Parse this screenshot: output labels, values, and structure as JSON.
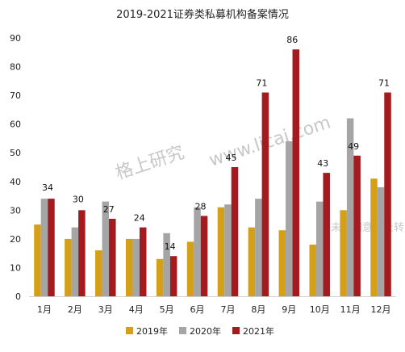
{
  "chart_data": {
    "type": "bar",
    "title": "2019-2021证券类私募机构备案情况",
    "categories": [
      "1月",
      "2月",
      "3月",
      "4月",
      "5月",
      "6月",
      "7月",
      "8月",
      "9月",
      "10月",
      "11月",
      "12月"
    ],
    "series": [
      {
        "name": "2019年",
        "color": "#d4a017",
        "values": [
          25,
          20,
          16,
          20,
          13,
          19,
          31,
          24,
          23,
          18,
          30,
          41
        ]
      },
      {
        "name": "2020年",
        "color": "#a5a5a5",
        "values": [
          34,
          24,
          33,
          20,
          22,
          31,
          32,
          34,
          54,
          33,
          62,
          38
        ]
      },
      {
        "name": "2021年",
        "color": "#a31a1f",
        "values": [
          34,
          30,
          27,
          24,
          14,
          28,
          45,
          71,
          86,
          43,
          49,
          71
        ]
      }
    ],
    "data_labels_series": "2021年",
    "ylim": [
      0,
      90
    ],
    "yticks": [
      0,
      10,
      20,
      30,
      40,
      50,
      60,
      70,
      80,
      90
    ],
    "grid": false,
    "legend_position": "bottom"
  },
  "watermarks": [
    "格上研究",
    "www.licai.com",
    "未经同意禁止转"
  ]
}
